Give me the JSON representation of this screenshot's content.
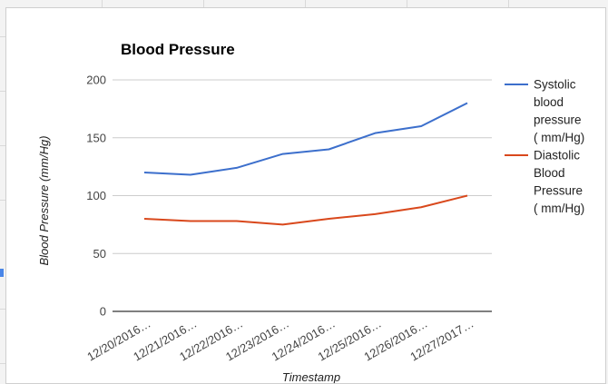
{
  "chart_data": {
    "type": "line",
    "title": "Blood Pressure",
    "xlabel": "Timestamp",
    "ylabel": "Blood Pressure (mm/Hg)",
    "ylim": [
      0,
      200
    ],
    "yticks": [
      0,
      50,
      100,
      150,
      200
    ],
    "grid": true,
    "legend_position": "right",
    "categories": [
      "12/20/2016…",
      "12/21/2016…",
      "12/22/2016…",
      "12/23/2016…",
      "12/24/2016…",
      "12/25/2016…",
      "12/26/2016…",
      "12/27/2017…"
    ],
    "series": [
      {
        "name": "Systolic blood pressure ( mm/Hg)",
        "legend_lines": [
          "Systolic",
          "blood",
          "pressure",
          "( mm/Hg)"
        ],
        "color": "#3c6fcc",
        "values": [
          120,
          118,
          124,
          136,
          140,
          154,
          160,
          180
        ]
      },
      {
        "name": "Diastolic Blood Pressure ( mm/Hg)",
        "legend_lines": [
          "Diastolic",
          "Blood",
          "Pressure",
          "( mm/Hg)"
        ],
        "color": "#d9481c",
        "values": [
          80,
          78,
          78,
          75,
          80,
          84,
          90,
          100
        ]
      }
    ]
  }
}
